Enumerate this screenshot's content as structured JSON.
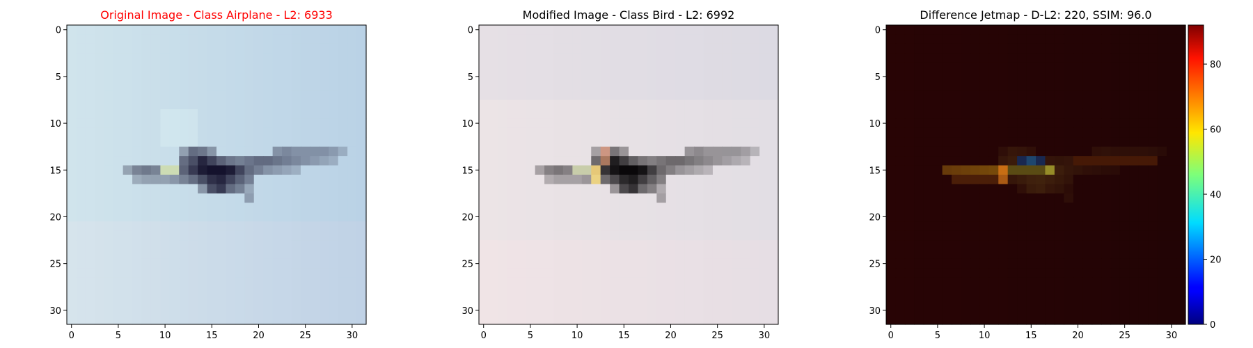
{
  "colors": {
    "title_original": "#ff0000",
    "title_default": "#000000",
    "sky_original": "#c6dcea",
    "sky_modified": "#e8e2e4",
    "jet_background": "#2b0303"
  },
  "chart_data": [
    {
      "type": "heatmap",
      "title": "Original Image - Class Airplane - L2: 6933",
      "title_color": "#ff0000",
      "image_size": [
        32,
        32
      ],
      "xticks": [
        "0",
        "5",
        "10",
        "15",
        "20",
        "25",
        "30"
      ],
      "yticks": [
        "0",
        "5",
        "10",
        "15",
        "20",
        "25",
        "30"
      ],
      "xlim": [
        -0.5,
        31.5
      ],
      "ylim": [
        31.5,
        -0.5
      ],
      "content": "blue sky with dark airplane silhouette around rows 13-18, columns 6-30"
    },
    {
      "type": "heatmap",
      "title": "Modified Image - Class Bird - L2: 6992",
      "title_color": "#000000",
      "image_size": [
        32,
        32
      ],
      "xticks": [
        "0",
        "5",
        "10",
        "15",
        "20",
        "25",
        "30"
      ],
      "yticks": [
        "0",
        "5",
        "10",
        "15",
        "20",
        "25",
        "30"
      ],
      "xlim": [
        -0.5,
        31.5
      ],
      "ylim": [
        31.5,
        -0.5
      ],
      "content": "pinkish-grey sky with airplane silhouette, slight warm tint near cockpit"
    },
    {
      "type": "heatmap",
      "title": "Difference Jetmap - D-L2: 220, SSIM: 96.0",
      "title_color": "#000000",
      "image_size": [
        32,
        32
      ],
      "xticks": [
        "0",
        "5",
        "10",
        "15",
        "20",
        "25",
        "30"
      ],
      "yticks": [
        "0",
        "5",
        "10",
        "15",
        "20",
        "25",
        "30"
      ],
      "xlim": [
        -0.5,
        31.5
      ],
      "ylim": [
        31.5,
        -0.5
      ],
      "colorbar": {
        "colormap": "jet",
        "range": [
          0,
          92
        ],
        "ticks": [
          "0",
          "20",
          "40",
          "60",
          "80"
        ]
      },
      "content": "mostly dark maroon with faint yellow/orange highlights along the airplane outline"
    }
  ]
}
